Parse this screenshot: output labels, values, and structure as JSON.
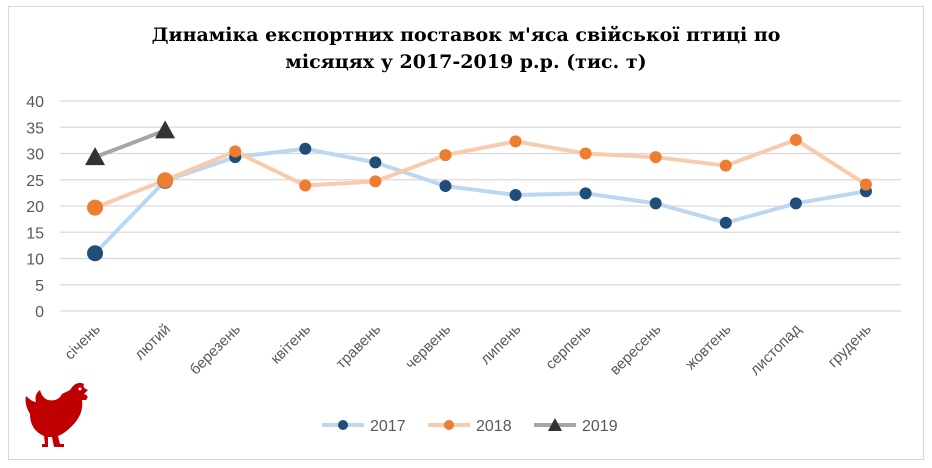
{
  "chart_data": {
    "type": "line",
    "title": "Динаміка експортних поставок м'яса свійської птиці по місяцях у 2017-2019 р.р. (тис. т)",
    "title_lines": [
      "Динаміка експортних поставок м'яса свійської птиці по",
      "місяцях у 2017-2019 р.р. (тис. т)"
    ],
    "categories": [
      "січень",
      "лютий",
      "березень",
      "квітень",
      "травень",
      "червень",
      "липень",
      "серпень",
      "вересень",
      "жовтень",
      "листопад",
      "грудень"
    ],
    "yticks": [
      "0",
      "5",
      "10",
      "15",
      "20",
      "25",
      "30",
      "35",
      "40"
    ],
    "ylim": [
      0,
      40
    ],
    "grid": true,
    "legend": "bottom",
    "series": [
      {
        "name": "2017",
        "line_color": "#bdd7ee",
        "marker_color": "#1f4e79",
        "marker": "circle",
        "values": [
          11.0,
          24.8,
          29.3,
          30.9,
          28.3,
          23.8,
          22.1,
          22.4,
          20.5,
          16.8,
          20.5,
          22.8
        ]
      },
      {
        "name": "2018",
        "line_color": "#f8cbad",
        "marker_color": "#ed7d31",
        "marker": "circle",
        "values": [
          19.7,
          24.9,
          30.4,
          23.9,
          24.7,
          29.7,
          32.3,
          30.0,
          29.3,
          27.7,
          32.6,
          24.1
        ]
      },
      {
        "name": "2019",
        "line_color": "#a6a6a6",
        "marker_color": "#333333",
        "marker": "triangle",
        "values": [
          29.3,
          34.4,
          null,
          null,
          null,
          null,
          null,
          null,
          null,
          null,
          null,
          null
        ]
      }
    ]
  },
  "decoration": {
    "icon": "rooster-icon",
    "color": "#c00000"
  }
}
